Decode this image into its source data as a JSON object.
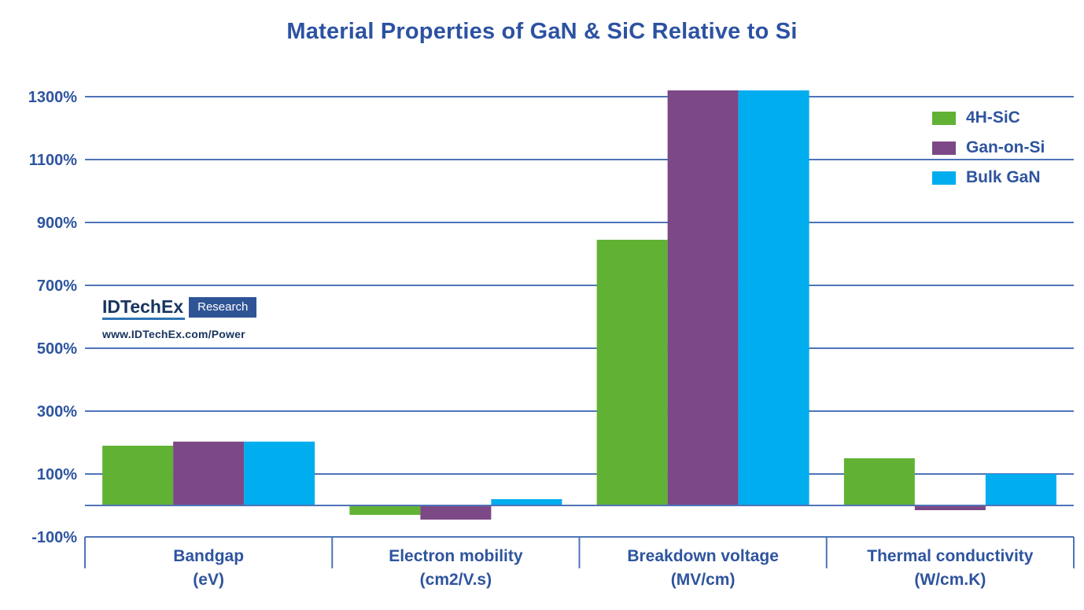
{
  "page": {
    "background": "#ffffff"
  },
  "logo": {
    "brand": "IDTechEx",
    "badge": "Research",
    "url": "www.IDTechEx.com/Power"
  },
  "colors": {
    "title_text": "#2c52a2",
    "axis_text": "#2e549e",
    "gridline": "#4e74b8",
    "logo_navy": "#17345f",
    "badge_bg": "#2f5496",
    "badge_text": "#ffffff"
  },
  "chart_data": {
    "type": "bar",
    "title": "Material Properties of GaN & SiC Relative to Si",
    "categories": [
      {
        "label": "Bandgap",
        "unit": "(eV)"
      },
      {
        "label": "Electron mobility",
        "unit": "(cm2/V.s)"
      },
      {
        "label": "Breakdown voltage",
        "unit": "(MV/cm)"
      },
      {
        "label": "Thermal conductivity",
        "unit": "(W/cm.K)"
      }
    ],
    "series": [
      {
        "name": "4H-SiC",
        "color": "#61b234",
        "values": [
          190,
          -30,
          845,
          150
        ]
      },
      {
        "name": "Gan-on-Si",
        "color": "#7c4886",
        "values": [
          203,
          -45,
          1320,
          -15
        ]
      },
      {
        "name": "Bulk GaN",
        "color": "#00adee",
        "values": [
          203,
          20,
          1320,
          100
        ]
      }
    ],
    "y_axis": {
      "min": -100,
      "max": 1300,
      "tick_step": 200,
      "tick_suffix": "%",
      "labeled_ticks": [
        1300,
        1100,
        900,
        700,
        500,
        300,
        100,
        -100
      ]
    },
    "grid": true,
    "legend_position": "top-right"
  }
}
